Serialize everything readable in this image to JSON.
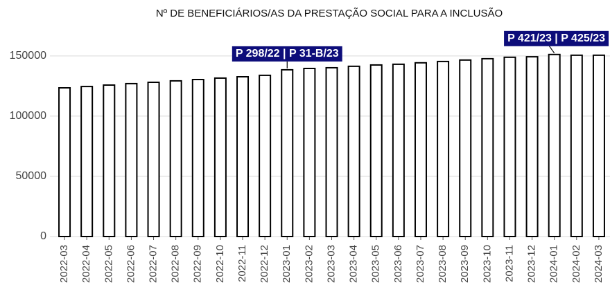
{
  "chart_data": {
    "type": "bar",
    "title": "Nº DE BENEFICIÁRIOS/AS DA PRESTAÇÃO SOCIAL PARA A INCLUSÃO",
    "categories": [
      "2022-03",
      "2022-04",
      "2022-05",
      "2022-06",
      "2022-07",
      "2022-08",
      "2022-09",
      "2022-10",
      "2022-11",
      "2022-12",
      "2023-01",
      "2023-02",
      "2023-03",
      "2023-04",
      "2023-05",
      "2023-06",
      "2023-07",
      "2023-08",
      "2023-09",
      "2023-10",
      "2023-11",
      "2023-12",
      "2024-01",
      "2024-02",
      "2024-03"
    ],
    "values": [
      123500,
      124600,
      125800,
      127000,
      128100,
      129300,
      130400,
      131600,
      132700,
      133900,
      138500,
      139600,
      140200,
      141400,
      142500,
      143100,
      144300,
      145400,
      146600,
      147700,
      148900,
      149300,
      151200,
      150600,
      150600
    ],
    "color": "#ffffff",
    "ylim": [
      0,
      162000
    ],
    "yticks": [
      0,
      50000,
      100000,
      150000
    ],
    "grid": true,
    "annotations": [
      {
        "text": "P 298/22 | P 31-B/23",
        "category": "2023-01"
      },
      {
        "text": "P 421/23 | P 425/23",
        "category": "2024-01"
      }
    ]
  }
}
